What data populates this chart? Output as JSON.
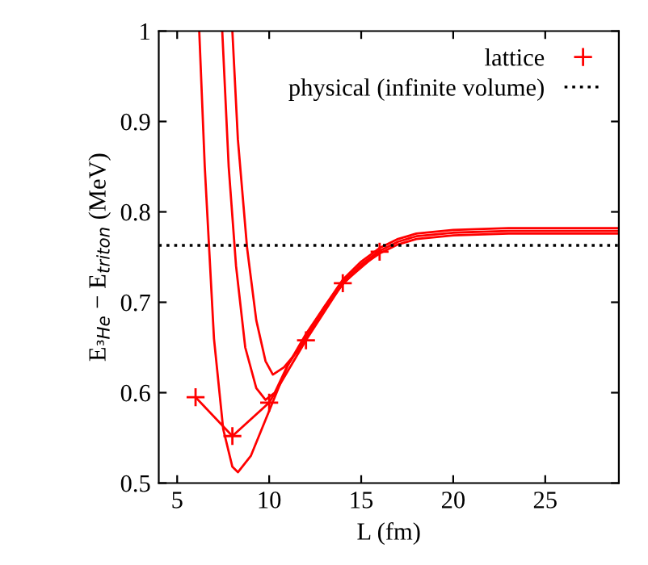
{
  "chart_data": {
    "type": "line",
    "xlabel": "L (fm)",
    "ylabel": "E$_{³He}$ − E$_{triton}$ (MeV)",
    "xlim": [
      4,
      29
    ],
    "ylim": [
      0.5,
      1
    ],
    "xticks": [
      5,
      10,
      15,
      20,
      25
    ],
    "yticks": [
      0.5,
      0.6,
      0.7,
      0.8,
      0.9,
      {
        "value": 1,
        "label": "1"
      }
    ],
    "grid": false,
    "legend": "top right",
    "series": [
      {
        "name": "lattice",
        "color": "#ff0000",
        "marker": "cross",
        "line_style": "solid",
        "x": [
          6,
          8,
          10,
          12,
          14,
          16
        ],
        "values": [
          0.595,
          0.552,
          0.589,
          0.658,
          0.721,
          0.756
        ]
      },
      {
        "color": "#ff0000",
        "marker": "none",
        "line_style": "solid",
        "x": [
          6.2,
          6.5,
          7,
          7.5,
          8,
          8.3,
          9,
          10,
          11,
          12,
          13,
          14,
          15,
          16,
          17,
          18,
          20,
          23,
          29
        ],
        "values": [
          1.0,
          0.85,
          0.66,
          0.56,
          0.518,
          0.512,
          0.53,
          0.58,
          0.63,
          0.665,
          0.695,
          0.725,
          0.745,
          0.76,
          0.77,
          0.776,
          0.78,
          0.782,
          0.782
        ]
      },
      {
        "color": "#ff0000",
        "marker": "none",
        "line_style": "solid",
        "x": [
          7.45,
          7.8,
          8.2,
          8.7,
          9.3,
          9.8,
          10.3,
          11,
          12,
          13,
          14,
          15,
          16,
          17,
          18,
          20,
          23,
          29
        ],
        "values": [
          1.0,
          0.85,
          0.74,
          0.65,
          0.605,
          0.592,
          0.6,
          0.63,
          0.662,
          0.695,
          0.722,
          0.742,
          0.757,
          0.767,
          0.773,
          0.777,
          0.779,
          0.779
        ]
      },
      {
        "color": "#ff0000",
        "marker": "none",
        "line_style": "solid",
        "x": [
          8.0,
          8.3,
          8.8,
          9.3,
          9.8,
          10.2,
          10.8,
          11.5,
          12,
          13,
          14,
          15,
          16,
          17,
          18,
          20,
          23,
          29
        ],
        "values": [
          1.0,
          0.88,
          0.76,
          0.68,
          0.635,
          0.62,
          0.628,
          0.645,
          0.66,
          0.693,
          0.72,
          0.74,
          0.754,
          0.764,
          0.77,
          0.774,
          0.776,
          0.776
        ]
      }
    ],
    "ref_lines": [
      {
        "axis": "y",
        "value": 0.763,
        "label": "physical (infinite volume)",
        "color": "#000000",
        "line_style": "dotted"
      }
    ]
  }
}
